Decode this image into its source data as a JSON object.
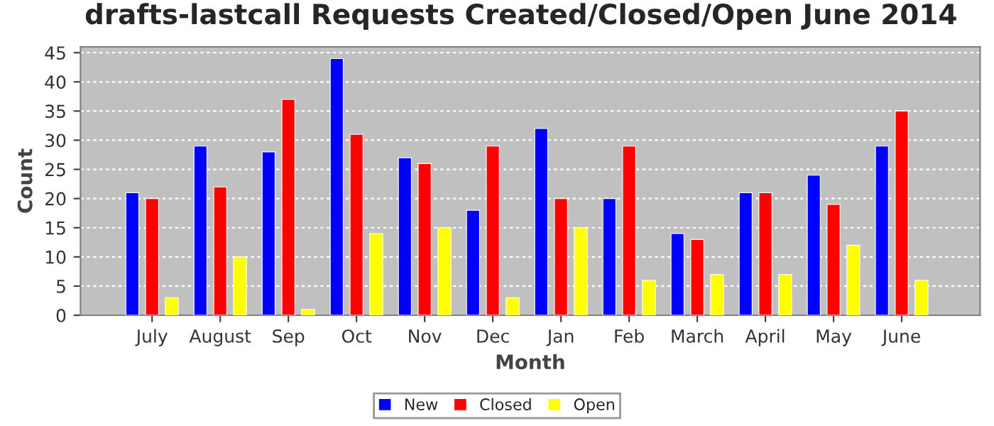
{
  "chart_data": {
    "type": "bar",
    "title": "drafts-lastcall Requests Created/Closed/Open June 2014",
    "xlabel": "Month",
    "ylabel": "Count",
    "categories": [
      "July",
      "August",
      "Sep",
      "Oct",
      "Nov",
      "Dec",
      "Jan",
      "Feb",
      "March",
      "April",
      "May",
      "June"
    ],
    "series": [
      {
        "name": "New",
        "color": "#0000ff",
        "values": [
          21,
          29,
          28,
          44,
          27,
          18,
          32,
          20,
          14,
          21,
          24,
          29
        ]
      },
      {
        "name": "Closed",
        "color": "#ff0000",
        "values": [
          20,
          22,
          37,
          31,
          26,
          29,
          20,
          29,
          13,
          21,
          19,
          35
        ]
      },
      {
        "name": "Open",
        "color": "#ffff00",
        "values": [
          3,
          10,
          1,
          14,
          15,
          3,
          15,
          6,
          7,
          7,
          12,
          6
        ]
      }
    ],
    "ylim": [
      0,
      46
    ],
    "yticks": [
      0,
      5,
      10,
      15,
      20,
      25,
      30,
      35,
      40,
      45
    ],
    "grid": "y",
    "legend": "bottom"
  }
}
